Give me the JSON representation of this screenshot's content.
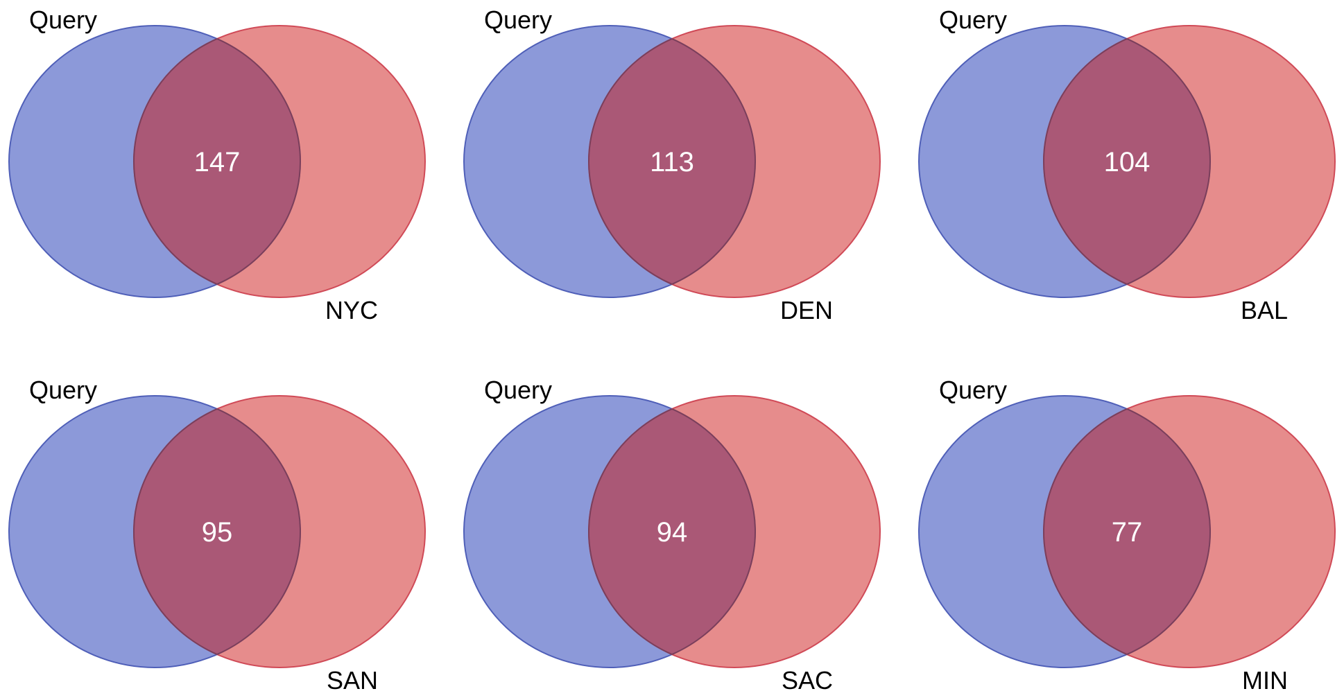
{
  "figure": {
    "panels": [
      {
        "left_label": "Query",
        "right_label": "NYC",
        "overlap": "147"
      },
      {
        "left_label": "Query",
        "right_label": "DEN",
        "overlap": "113"
      },
      {
        "left_label": "Query",
        "right_label": "BAL",
        "overlap": "104"
      },
      {
        "left_label": "Query",
        "right_label": "SAN",
        "overlap": "95"
      },
      {
        "left_label": "Query",
        "right_label": "SAC",
        "overlap": "94"
      },
      {
        "left_label": "Query",
        "right_label": "MIN",
        "overlap": "77"
      }
    ]
  },
  "colors": {
    "left_fill": "#6677cc",
    "left_stroke": "#4f5fb8",
    "right_fill": "#dd6666",
    "right_stroke": "#d04a57",
    "overlap_fill": "#aa5876",
    "overlap_stroke": "#7a3f5c",
    "count_text": "#ffffff",
    "label_text": "#000000"
  }
}
